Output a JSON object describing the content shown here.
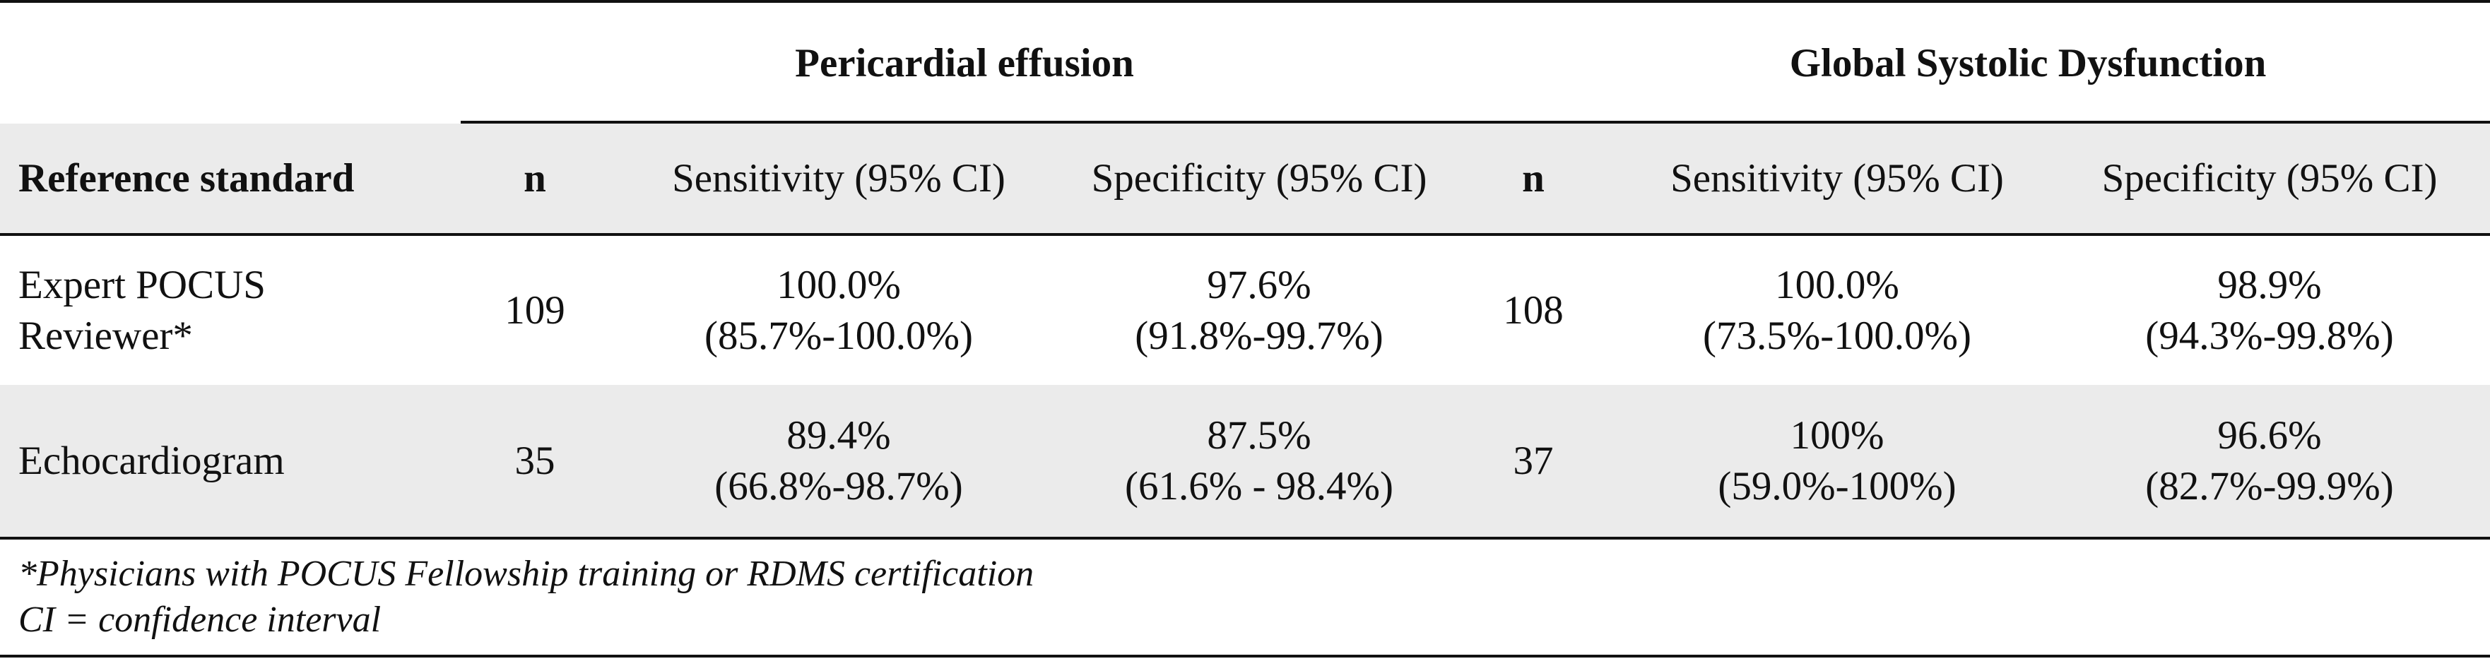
{
  "groups": {
    "pericardial": "Pericardial effusion",
    "systolic": "Global Systolic Dysfunction"
  },
  "headers": {
    "reference": "Reference standard",
    "n1": "n",
    "sens1": "Sensitivity (95% CI)",
    "spec1": "Specificity (95% CI)",
    "n2": "n",
    "sens2": "Sensitivity (95% CI)",
    "spec2": "Specificity (95% CI)"
  },
  "rows": [
    {
      "reference": [
        "Expert POCUS",
        "Reviewer*"
      ],
      "n1": "109",
      "sens1": [
        "100.0%",
        "(85.7%-100.0%)"
      ],
      "spec1": [
        "97.6%",
        "(91.8%-99.7%)"
      ],
      "n2": "108",
      "sens2": [
        "100.0%",
        "(73.5%-100.0%)"
      ],
      "spec2": [
        "98.9%",
        "(94.3%-99.8%)"
      ]
    },
    {
      "reference": [
        "Echocardiogram"
      ],
      "n1": "35",
      "sens1": [
        "89.4%",
        "(66.8%-98.7%)"
      ],
      "spec1": [
        "87.5%",
        "(61.6% - 98.4%)"
      ],
      "n2": "37",
      "sens2": [
        "100%",
        "(59.0%-100%)"
      ],
      "spec2": [
        "96.6%",
        "(82.7%-99.9%)"
      ]
    }
  ],
  "footnotes": [
    "*Physicians with POCUS Fellowship training or RDMS certification",
    "CI = confidence interval"
  ]
}
